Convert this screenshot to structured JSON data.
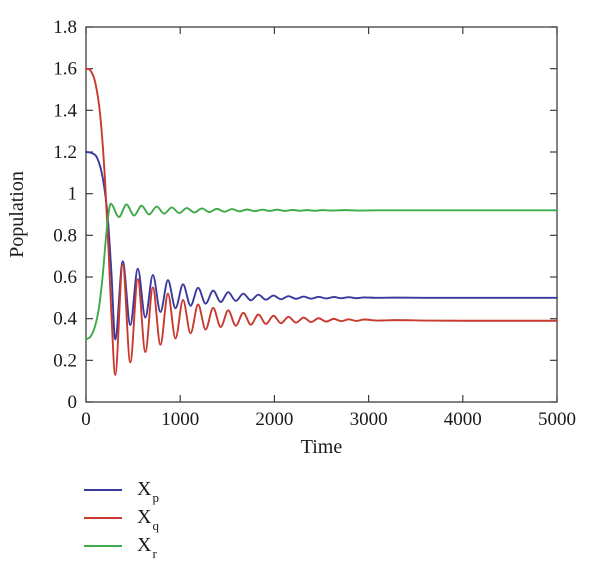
{
  "figure": {
    "background": "#ffffff"
  },
  "chart_data": {
    "type": "line",
    "title": "",
    "xlabel": "Time",
    "ylabel": "Population",
    "xlim": [
      0,
      5000
    ],
    "ylim": [
      0,
      1.8
    ],
    "grid": false,
    "box": true,
    "ticks_inward": true,
    "axis_color": "#3f3f3f",
    "text_color": "#1a1a1a",
    "x_ticks": {
      "values": [
        0,
        1000,
        2000,
        3000,
        4000,
        5000
      ],
      "labels": [
        "0",
        "1000",
        "2000",
        "3000",
        "4000",
        "5000"
      ]
    },
    "y_ticks": {
      "values": [
        0,
        0.2,
        0.4,
        0.6,
        0.8,
        1.0,
        1.2,
        1.4,
        1.6,
        1.8
      ],
      "labels": [
        "0",
        "0.2",
        "0.4",
        "0.6",
        "0.8",
        "1",
        "1.2",
        "1.4",
        "1.6",
        "1.8"
      ]
    },
    "legend": {
      "position": "bottom-left"
    },
    "series": [
      {
        "name": "X_p",
        "label_main": "X",
        "label_sub": "p",
        "color": "#3a3a9e",
        "description": "starts at 1.2, damped oscillation settling at 0.5",
        "points": [
          [
            0,
            1.2
          ],
          [
            60,
            1.195
          ],
          [
            120,
            1.17
          ],
          [
            180,
            1.07
          ],
          [
            230,
            0.89
          ],
          [
            270,
            0.62
          ],
          [
            310,
            0.3
          ],
          [
            390,
            0.675
          ],
          [
            470,
            0.37
          ],
          [
            550,
            0.64
          ],
          [
            630,
            0.405
          ],
          [
            710,
            0.61
          ],
          [
            790,
            0.432
          ],
          [
            870,
            0.585
          ],
          [
            950,
            0.45
          ],
          [
            1030,
            0.565
          ],
          [
            1110,
            0.462
          ],
          [
            1190,
            0.548
          ],
          [
            1270,
            0.472
          ],
          [
            1350,
            0.535
          ],
          [
            1430,
            0.48
          ],
          [
            1510,
            0.527
          ],
          [
            1590,
            0.485
          ],
          [
            1670,
            0.52
          ],
          [
            1750,
            0.488
          ],
          [
            1830,
            0.515
          ],
          [
            1910,
            0.491
          ],
          [
            1990,
            0.511
          ],
          [
            2070,
            0.493
          ],
          [
            2150,
            0.508
          ],
          [
            2230,
            0.495
          ],
          [
            2310,
            0.506
          ],
          [
            2390,
            0.496
          ],
          [
            2470,
            0.505
          ],
          [
            2550,
            0.497
          ],
          [
            2630,
            0.504
          ],
          [
            2710,
            0.498
          ],
          [
            2790,
            0.503
          ],
          [
            2870,
            0.498
          ],
          [
            2950,
            0.502
          ],
          [
            3100,
            0.5
          ],
          [
            3300,
            0.501
          ],
          [
            3600,
            0.5
          ],
          [
            4000,
            0.5
          ],
          [
            4500,
            0.5
          ],
          [
            5000,
            0.5
          ]
        ]
      },
      {
        "name": "X_q",
        "label_main": "X",
        "label_sub": "q",
        "color": "#c8392e",
        "description": "starts at 1.6, deep damped oscillation settling at 0.39",
        "points": [
          [
            0,
            1.6
          ],
          [
            50,
            1.59
          ],
          [
            100,
            1.53
          ],
          [
            150,
            1.38
          ],
          [
            200,
            1.08
          ],
          [
            240,
            0.72
          ],
          [
            270,
            0.42
          ],
          [
            310,
            0.13
          ],
          [
            390,
            0.66
          ],
          [
            470,
            0.19
          ],
          [
            550,
            0.59
          ],
          [
            630,
            0.24
          ],
          [
            710,
            0.55
          ],
          [
            790,
            0.275
          ],
          [
            870,
            0.52
          ],
          [
            950,
            0.305
          ],
          [
            1030,
            0.49
          ],
          [
            1110,
            0.33
          ],
          [
            1190,
            0.468
          ],
          [
            1270,
            0.348
          ],
          [
            1350,
            0.452
          ],
          [
            1430,
            0.36
          ],
          [
            1510,
            0.44
          ],
          [
            1590,
            0.366
          ],
          [
            1670,
            0.428
          ],
          [
            1750,
            0.371
          ],
          [
            1830,
            0.42
          ],
          [
            1910,
            0.375
          ],
          [
            1990,
            0.414
          ],
          [
            2070,
            0.378
          ],
          [
            2150,
            0.409
          ],
          [
            2230,
            0.381
          ],
          [
            2310,
            0.405
          ],
          [
            2390,
            0.384
          ],
          [
            2470,
            0.402
          ],
          [
            2550,
            0.386
          ],
          [
            2630,
            0.399
          ],
          [
            2710,
            0.388
          ],
          [
            2790,
            0.397
          ],
          [
            2870,
            0.389
          ],
          [
            2950,
            0.396
          ],
          [
            3100,
            0.391
          ],
          [
            3300,
            0.393
          ],
          [
            3600,
            0.391
          ],
          [
            4000,
            0.39
          ],
          [
            4500,
            0.39
          ],
          [
            5000,
            0.39
          ]
        ]
      },
      {
        "name": "X_r",
        "label_main": "X",
        "label_sub": "r",
        "color": "#3dab4a",
        "description": "starts at 0.3, rises with overshoot, settles at 0.92",
        "points": [
          [
            0,
            0.3
          ],
          [
            50,
            0.315
          ],
          [
            100,
            0.37
          ],
          [
            140,
            0.46
          ],
          [
            180,
            0.62
          ],
          [
            210,
            0.78
          ],
          [
            235,
            0.89
          ],
          [
            262,
            0.952
          ],
          [
            350,
            0.888
          ],
          [
            430,
            0.948
          ],
          [
            510,
            0.895
          ],
          [
            590,
            0.942
          ],
          [
            670,
            0.9
          ],
          [
            750,
            0.938
          ],
          [
            830,
            0.904
          ],
          [
            910,
            0.934
          ],
          [
            990,
            0.907
          ],
          [
            1070,
            0.931
          ],
          [
            1150,
            0.91
          ],
          [
            1230,
            0.929
          ],
          [
            1310,
            0.912
          ],
          [
            1390,
            0.927
          ],
          [
            1470,
            0.913
          ],
          [
            1550,
            0.926
          ],
          [
            1630,
            0.915
          ],
          [
            1710,
            0.924
          ],
          [
            1790,
            0.916
          ],
          [
            1870,
            0.923
          ],
          [
            1950,
            0.917
          ],
          [
            2030,
            0.923
          ],
          [
            2110,
            0.917
          ],
          [
            2190,
            0.922
          ],
          [
            2270,
            0.918
          ],
          [
            2350,
            0.921
          ],
          [
            2430,
            0.918
          ],
          [
            2510,
            0.921
          ],
          [
            2600,
            0.919
          ],
          [
            2750,
            0.921
          ],
          [
            2900,
            0.919
          ],
          [
            3100,
            0.92
          ],
          [
            3500,
            0.92
          ],
          [
            4000,
            0.92
          ],
          [
            4500,
            0.92
          ],
          [
            5000,
            0.92
          ]
        ]
      }
    ]
  }
}
